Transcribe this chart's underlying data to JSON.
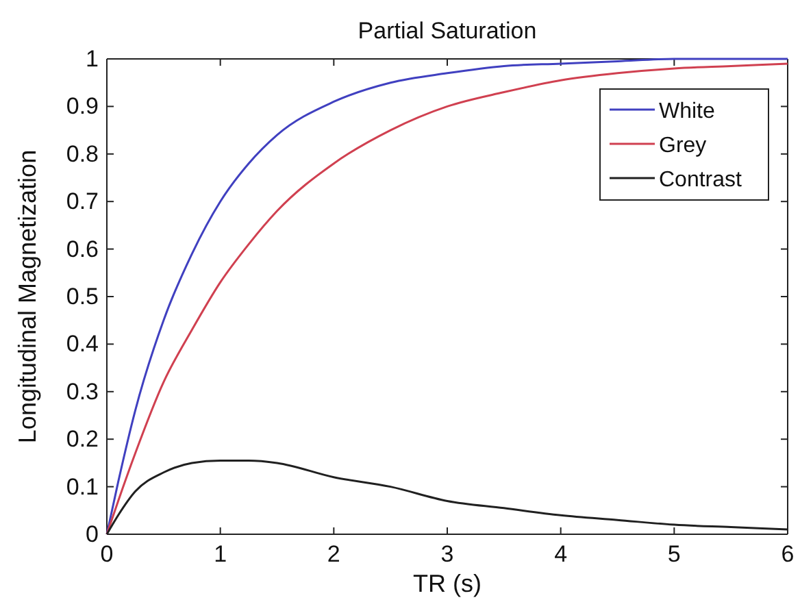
{
  "chart_data": {
    "type": "line",
    "title": "Partial Saturation",
    "xlabel": "TR (s)",
    "ylabel": "Longitudinal Magnetization",
    "x": [
      0,
      0.1,
      0.25,
      0.5,
      0.75,
      1,
      1.25,
      1.5,
      2,
      2.5,
      3,
      3.5,
      4,
      4.5,
      5,
      5.5,
      6
    ],
    "series": [
      {
        "name": "White",
        "color": "#4040c0",
        "values": [
          0,
          0.11,
          0.26,
          0.45,
          0.59,
          0.7,
          0.78,
          0.84,
          0.91,
          0.95,
          0.97,
          0.985,
          0.99,
          0.995,
          1.0,
          1.0,
          1.0
        ]
      },
      {
        "name": "Grey",
        "color": "#d04050",
        "values": [
          0,
          0.07,
          0.17,
          0.32,
          0.43,
          0.53,
          0.61,
          0.68,
          0.78,
          0.85,
          0.9,
          0.93,
          0.955,
          0.97,
          0.98,
          0.985,
          0.99
        ]
      },
      {
        "name": "Contrast",
        "color": "#202020",
        "values": [
          0,
          0.04,
          0.09,
          0.13,
          0.15,
          0.155,
          0.155,
          0.15,
          0.12,
          0.1,
          0.07,
          0.055,
          0.04,
          0.03,
          0.02,
          0.015,
          0.01
        ]
      }
    ],
    "xlim": [
      0,
      6
    ],
    "xticks": [
      0,
      1,
      2,
      3,
      4,
      5,
      6
    ],
    "ylim": [
      0,
      1
    ],
    "yticks": [
      0,
      0.1,
      0.2,
      0.3,
      0.4,
      0.5,
      0.6,
      0.7,
      0.8,
      0.9,
      1
    ],
    "legend": "top right",
    "grid": false
  }
}
